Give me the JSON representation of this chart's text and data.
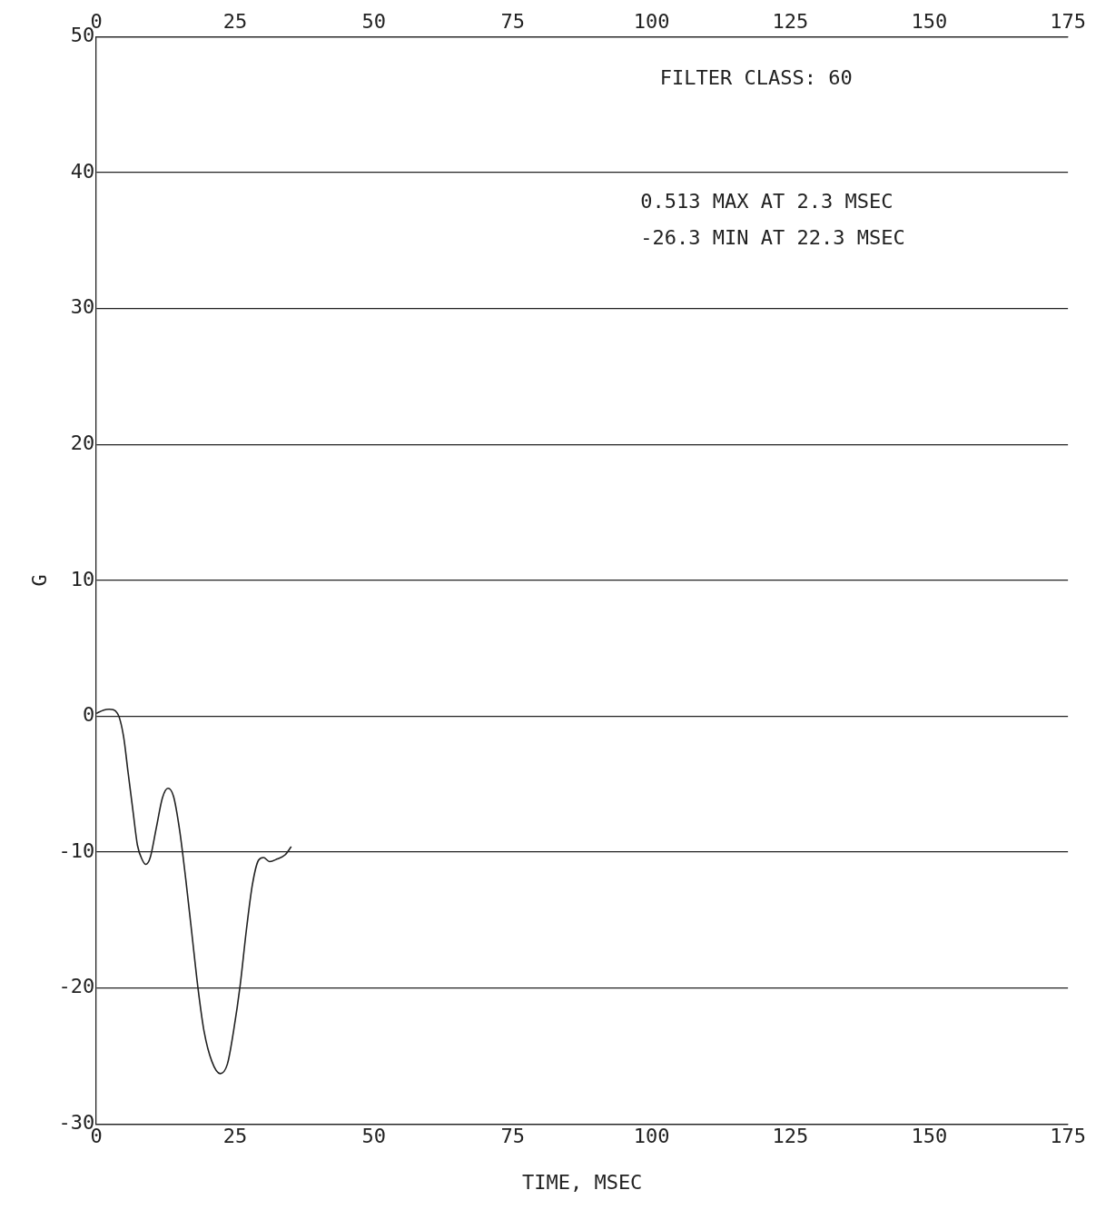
{
  "chart_data": {
    "type": "line",
    "xlabel": "TIME, MSEC",
    "ylabel": "G",
    "annotations": [
      "FILTER CLASS: 60",
      "0.513 MAX AT 2.3 MSEC",
      "-26.3 MIN AT 22.3 MSEC"
    ],
    "x": [
      0,
      1.3,
      2.3,
      3.8,
      4.9,
      5.7,
      6.6,
      7.4,
      8.3,
      8.9,
      9.7,
      10.8,
      11.9,
      12.9,
      13.9,
      15.0,
      16.1,
      17.2,
      18.3,
      19.4,
      20.8,
      22.3,
      23.6,
      24.7,
      25.9,
      27.0,
      28.1,
      29.2,
      30.1,
      31.2,
      32.6,
      34.0,
      35.1
    ],
    "series": [
      {
        "color": "#222222",
        "values": [
          0.2,
          0.45,
          0.51,
          0.2,
          -1.5,
          -4.1,
          -7.0,
          -9.5,
          -10.6,
          -10.9,
          -10.4,
          -8.2,
          -6.0,
          -5.3,
          -5.9,
          -8.4,
          -12.0,
          -16.0,
          -20.0,
          -23.2,
          -25.4,
          -26.3,
          -25.6,
          -23.2,
          -19.8,
          -15.8,
          -12.4,
          -10.6,
          -10.4,
          -10.7,
          -10.5,
          -10.2,
          -9.6
        ]
      }
    ],
    "xlim": [
      0,
      175
    ],
    "xticks": [
      0,
      25,
      50,
      75,
      100,
      125,
      150,
      175
    ],
    "x2lim": [
      0,
      175
    ],
    "x2ticks": [
      0,
      25,
      50,
      75,
      100,
      125,
      150,
      175
    ],
    "ylim": [
      -30,
      50
    ],
    "yticks": [
      -30,
      -20,
      -10,
      0,
      10,
      20,
      30,
      40,
      50
    ],
    "grid": "y",
    "legend": false,
    "marker": "none",
    "line_style": "solid"
  }
}
